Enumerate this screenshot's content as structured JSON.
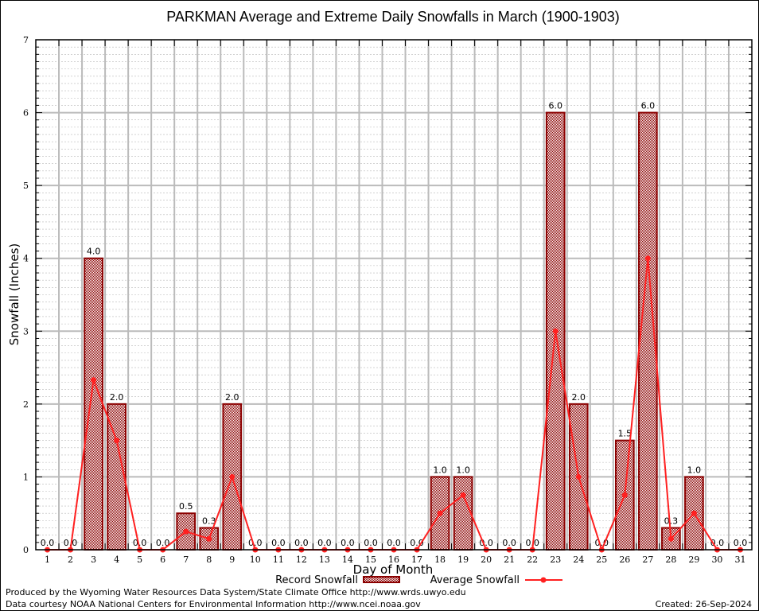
{
  "chart_data": {
    "type": "bar",
    "title": "PARKMAN Average and Extreme Daily Snowfalls in March (1900-1903)",
    "xlabel": "Day of Month",
    "ylabel": "Snowfall (Inches)",
    "ylim": [
      0,
      7
    ],
    "yticks": [
      "0",
      "1",
      "2",
      "3",
      "4",
      "5",
      "6",
      "7"
    ],
    "categories": [
      "1",
      "2",
      "3",
      "4",
      "5",
      "6",
      "7",
      "8",
      "9",
      "10",
      "11",
      "12",
      "13",
      "14",
      "15",
      "16",
      "17",
      "18",
      "19",
      "20",
      "21",
      "22",
      "23",
      "24",
      "25",
      "26",
      "27",
      "28",
      "29",
      "30",
      "31"
    ],
    "grid": true,
    "legend_position": "bottom-center",
    "series": [
      {
        "name": "Record Snowfall",
        "type": "bar",
        "color": "#8b0000",
        "values": [
          0.0,
          0.0,
          4.0,
          2.0,
          0.0,
          0.0,
          0.5,
          0.3,
          2.0,
          0.0,
          0.0,
          0.0,
          0.0,
          0.0,
          0.0,
          0.0,
          0.0,
          1.0,
          1.0,
          0.0,
          0.0,
          0.0,
          6.0,
          2.0,
          0.0,
          1.5,
          6.0,
          0.3,
          1.0,
          0.0,
          0.0
        ],
        "labels": [
          "0.0",
          "0.0",
          "4.0",
          "2.0",
          "0.0",
          "0.0",
          "0.5",
          "0.3",
          "2.0",
          "0.0",
          "0.0",
          "0.0",
          "0.0",
          "0.0",
          "0.0",
          "0.0",
          "0.0",
          "1.0",
          "1.0",
          "0.0",
          "0.0",
          "0.0",
          "6.0",
          "2.0",
          "0.0",
          "1.5",
          "6.0",
          "0.3",
          "1.0",
          "0.0",
          "0.0"
        ]
      },
      {
        "name": "Average Snowfall",
        "type": "line",
        "color": "#ff2020",
        "values": [
          0,
          0,
          2.33,
          1.5,
          0,
          0,
          0.25,
          0.15,
          1.0,
          0,
          0,
          0,
          0,
          0,
          0,
          0,
          0,
          0.5,
          0.75,
          0,
          0,
          0,
          3.0,
          1.0,
          0,
          0.75,
          4.0,
          0.15,
          0.5,
          0,
          0
        ]
      }
    ]
  },
  "footer": {
    "line1": "Produced by the Wyoming Water Resources Data System/State Climate Office http://www.wrds.uwyo.edu",
    "line2": "Data courtesy NOAA National Centers for Environmental Information http://www.ncei.noaa.gov",
    "created": "Created: 26-Sep-2024"
  }
}
